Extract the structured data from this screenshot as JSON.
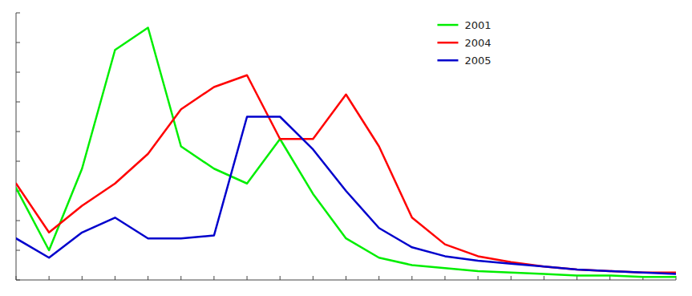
{
  "chart_data": {
    "type": "line",
    "x": [
      0,
      1,
      2,
      3,
      4,
      5,
      6,
      7,
      8,
      9,
      10,
      11,
      12,
      13,
      14,
      15,
      16,
      17,
      18,
      19,
      20
    ],
    "series": [
      {
        "name": "2001",
        "color": "#00ee00",
        "values": [
          62,
          20,
          75,
          155,
          170,
          90,
          75,
          65,
          95,
          58,
          28,
          15,
          10,
          8,
          6,
          5,
          4,
          3,
          3,
          2,
          2
        ]
      },
      {
        "name": "2004",
        "color": "#ff0000",
        "values": [
          65,
          32,
          50,
          65,
          85,
          115,
          130,
          138,
          95,
          95,
          125,
          90,
          42,
          24,
          16,
          12,
          9,
          7,
          6,
          5,
          5
        ]
      },
      {
        "name": "2005",
        "color": "#0000cc",
        "values": [
          28,
          15,
          32,
          42,
          28,
          28,
          30,
          110,
          110,
          88,
          60,
          35,
          22,
          16,
          13,
          11,
          9,
          7,
          6,
          5,
          4
        ]
      }
    ],
    "xlim": [
      0,
      20
    ],
    "ylim": [
      0,
      180
    ],
    "xticks": [
      0,
      1,
      2,
      3,
      4,
      5,
      6,
      7,
      8,
      9,
      10,
      11,
      12,
      13,
      14,
      15,
      16,
      17,
      18,
      19,
      20
    ],
    "yticks": [
      0,
      20,
      40,
      60,
      80,
      100,
      120,
      140,
      160,
      180
    ],
    "tick_labels": false,
    "legend": "upper right",
    "grid": false
  }
}
